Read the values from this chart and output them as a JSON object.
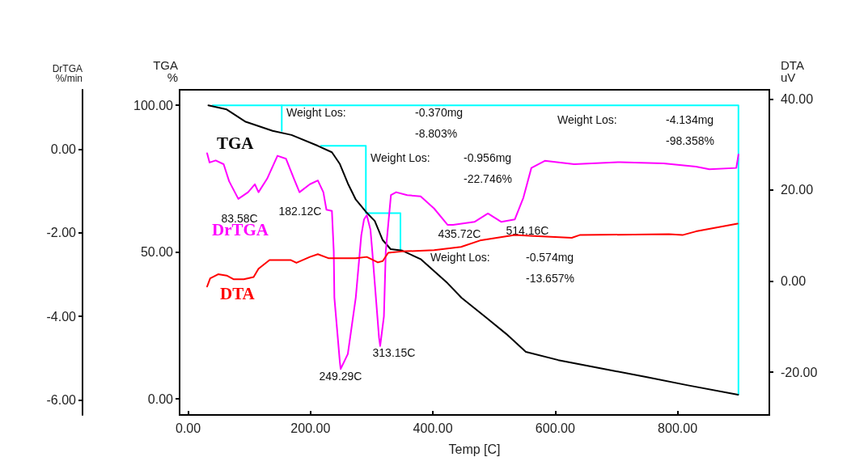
{
  "chart_data": {
    "type": "line",
    "xlabel": "Temp [C]",
    "ylabel": "TGA\n%",
    "y2label": "DTA\nuV",
    "y3label": "DrTGA\n%/min",
    "xlim": [
      -14,
      950
    ],
    "xticks": [
      {
        "value": 0,
        "label": "0.00"
      },
      {
        "value": 200,
        "label": "200.00"
      },
      {
        "value": 400,
        "label": "400.00"
      },
      {
        "value": 600,
        "label": "600.00"
      },
      {
        "value": 800,
        "label": "800.00"
      }
    ],
    "ylim": [
      -5.5,
      105.3
    ],
    "yticks": [
      {
        "value": 0,
        "label": "0.00"
      },
      {
        "value": 50,
        "label": "50.00"
      },
      {
        "value": 100,
        "label": "100.00"
      }
    ],
    "y2lim": [
      -29.4,
      42
    ],
    "y2ticks": [
      {
        "value": -20,
        "label": "-20.00"
      },
      {
        "value": 0,
        "label": "0.00"
      },
      {
        "value": 20,
        "label": "20.00"
      },
      {
        "value": 40,
        "label": "40.00"
      }
    ],
    "y3lim": [
      -6.36,
      1.42
    ],
    "y3ticks": [
      {
        "value": -6,
        "label": "-6.00"
      },
      {
        "value": -4,
        "label": "-4.00"
      },
      {
        "value": -2,
        "label": "-2.00"
      },
      {
        "value": 0,
        "label": "0.00"
      }
    ],
    "marker": "none",
    "series": [
      {
        "name": "TGA",
        "color": "#000000",
        "x": [
          33,
          63,
          93,
          138,
          169,
          212,
          235,
          248,
          261,
          274,
          292,
          305,
          318,
          331,
          350,
          380,
          424,
          447,
          487,
          520,
          552,
          605,
          684,
          750,
          817,
          899
        ],
        "values": [
          100,
          98.6,
          94.5,
          91.3,
          89.9,
          86.2,
          84,
          80,
          73.4,
          67.9,
          63.4,
          60.6,
          54.1,
          51,
          50.5,
          47.6,
          39.4,
          34.4,
          27.7,
          22.1,
          16,
          13.2,
          10,
          7.4,
          4.6,
          1.4
        ]
      },
      {
        "name": "DrTGA",
        "color": "#ff00ff",
        "axis": "y3",
        "x": [
          31,
          35,
          45,
          58,
          67,
          82,
          98,
          109,
          115,
          129,
          146,
          160,
          173,
          182,
          199,
          212,
          221,
          226,
          235,
          238,
          239,
          248,
          249.3,
          261,
          274,
          283,
          287.5,
          292,
          298,
          301,
          312,
          313.9,
          320,
          323,
          327,
          331.5,
          340,
          358,
          380,
          402,
          424,
          433,
          468,
          490,
          512,
          534,
          548,
          561,
          583,
          631,
          706,
          777,
          830,
          852,
          896,
          899.5
        ],
        "values": [
          -0.1,
          -0.32,
          -0.27,
          -0.36,
          -0.77,
          -1.19,
          -1.03,
          -0.84,
          -1.03,
          -0.71,
          -0.16,
          -0.23,
          -0.71,
          -1.03,
          -0.84,
          -0.75,
          -1.03,
          -1.45,
          -1.48,
          -2.45,
          -3.55,
          -5.1,
          -5.26,
          -4.9,
          -3.55,
          -2.06,
          -1.68,
          -1.58,
          -1.93,
          -2.45,
          -4.51,
          -4.71,
          -4.0,
          -2.45,
          -1.81,
          -1.1,
          -1.03,
          -1.1,
          -1.13,
          -1.42,
          -1.81,
          -1.81,
          -1.74,
          -1.54,
          -1.74,
          -1.68,
          -1.16,
          -0.45,
          -0.28,
          -0.36,
          -0.31,
          -0.34,
          -0.42,
          -0.48,
          -0.45,
          -0.13
        ]
      },
      {
        "name": "DTA",
        "color": "#ff0000",
        "axis": "y2",
        "x": [
          31,
          36,
          49,
          63,
          74,
          91,
          107,
          115,
          133,
          168,
          177,
          199,
          212,
          230,
          274,
          292,
          310,
          318,
          327,
          349,
          402,
          446,
          477,
          534,
          565,
          627,
          640,
          786,
          808,
          830,
          898
        ],
        "values": [
          -1.2,
          0.6,
          1.5,
          1.2,
          0.4,
          0.4,
          0.9,
          2.7,
          4.6,
          4.6,
          4.0,
          5.3,
          5.9,
          5.0,
          5.0,
          5.3,
          4.1,
          4.4,
          6.2,
          6.5,
          6.8,
          7.5,
          8.9,
          10.1,
          9.9,
          9.5,
          10.1,
          10.3,
          10.1,
          10.9,
          12.6
        ]
      },
      {
        "color": "#00ffff",
        "x": [
          40,
          899.5,
          899.5
        ],
        "values": [
          100,
          100,
          1.5
        ]
      },
      {
        "color": "#00ffff",
        "x": [
          153,
          153
        ],
        "values": [
          100,
          91.3
        ]
      },
      {
        "color": "#00ffff",
        "x": [
          217,
          290.5,
          290.5,
          347,
          347
        ],
        "values": [
          86.2,
          86.2,
          63.3,
          63.3,
          50.5
        ]
      }
    ],
    "annotations": [
      "Weight Los:",
      "-0.370mg",
      "-8.803%",
      "Weight Los:",
      "-0.956mg",
      "-22.746%",
      "Weight Los:",
      "-4.134mg",
      "-98.358%",
      "Weight Los:",
      "-0.574mg",
      "-13.657%",
      "83.58C",
      "182.12C",
      "249.29C",
      "313.15C",
      "435.72C",
      "514.16C"
    ]
  }
}
